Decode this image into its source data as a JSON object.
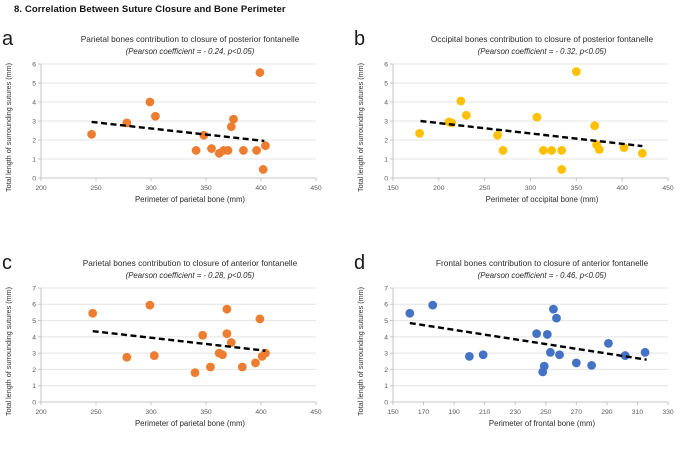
{
  "figure_title": "8. Correlation Between Suture Closure and Bone Perimeter",
  "colors": {
    "orange": "#ED7D31",
    "yellow": "#FFC000",
    "blue": "#4472C4",
    "grid": "#E4E4E4",
    "axis": "#C4C4C4",
    "tick_text": "#595959",
    "trend": "#000000"
  },
  "chart_data": [
    {
      "panel_label": "a",
      "type": "scatter",
      "title": "Parietal bones contribution to closure of posterior fontanelle",
      "subtitle": "(Pearson coefficient = - 0.24, p<0.05)",
      "xlabel": "Perimeter of parietal bone (mm)",
      "ylabel": "Total length of surrounding sutures (mm)",
      "xlim": [
        200,
        450
      ],
      "xtick_step": 50,
      "ylim": [
        0,
        6
      ],
      "ytick_step": 1,
      "grid": "horizontal",
      "legend": null,
      "point_color": "#ED7D31",
      "points": [
        [
          246,
          2.3
        ],
        [
          278,
          2.9
        ],
        [
          299,
          4.0
        ],
        [
          304,
          3.25
        ],
        [
          341,
          1.45
        ],
        [
          348,
          2.25
        ],
        [
          355,
          1.55
        ],
        [
          362,
          1.3
        ],
        [
          366,
          1.45
        ],
        [
          370,
          1.45
        ],
        [
          373,
          2.7
        ],
        [
          375,
          3.1
        ],
        [
          384,
          1.45
        ],
        [
          396,
          1.45
        ],
        [
          399,
          5.55
        ],
        [
          402,
          0.45
        ],
        [
          404,
          1.7
        ]
      ],
      "trend": [
        [
          246,
          2.95
        ],
        [
          403,
          1.95
        ]
      ]
    },
    {
      "panel_label": "b",
      "type": "scatter",
      "title": "Occipital bones contribution to closure of posterior fontanelle",
      "subtitle": "(Pearson coefficient = - 0.32, p<0.05)",
      "xlabel": "Perimeter of occipital bone (mm)",
      "ylabel": "Total length of surrounding sutures (mm)",
      "xlim": [
        150,
        450
      ],
      "xtick_step": 50,
      "ylim": [
        0,
        6
      ],
      "ytick_step": 1,
      "grid": "horizontal",
      "legend": null,
      "point_color": "#FFC000",
      "points": [
        [
          179,
          2.35
        ],
        [
          211,
          2.95
        ],
        [
          214,
          2.9
        ],
        [
          224,
          4.05
        ],
        [
          230,
          3.3
        ],
        [
          264,
          2.25
        ],
        [
          270,
          1.45
        ],
        [
          307,
          3.2
        ],
        [
          314,
          1.45
        ],
        [
          323,
          1.45
        ],
        [
          334,
          1.45
        ],
        [
          334,
          0.45
        ],
        [
          350,
          5.6
        ],
        [
          370,
          2.75
        ],
        [
          372,
          1.75
        ],
        [
          375,
          1.5
        ],
        [
          402,
          1.6
        ],
        [
          422,
          1.3
        ]
      ],
      "trend": [
        [
          180,
          3.0
        ],
        [
          422,
          1.68
        ]
      ]
    },
    {
      "panel_label": "c",
      "type": "scatter",
      "title": "Parietal bones contribution to closure of anterior fontanelle",
      "subtitle": "(Pearson coefficient = - 0.28, p<0.05)",
      "xlabel": "Perimeter of parietal bone (mm)",
      "ylabel": "Total length of surrounding sutures (mm)",
      "xlim": [
        200,
        450
      ],
      "xtick_step": 50,
      "ylim": [
        0,
        7
      ],
      "ytick_step": 1,
      "grid": "horizontal",
      "legend": null,
      "point_color": "#ED7D31",
      "points": [
        [
          247,
          5.45
        ],
        [
          278,
          2.75
        ],
        [
          299,
          5.95
        ],
        [
          303,
          2.85
        ],
        [
          340,
          1.8
        ],
        [
          347,
          4.1
        ],
        [
          354,
          2.15
        ],
        [
          362,
          3.0
        ],
        [
          365,
          2.9
        ],
        [
          369,
          4.2
        ],
        [
          369,
          5.7
        ],
        [
          373,
          3.65
        ],
        [
          383,
          2.15
        ],
        [
          395,
          2.4
        ],
        [
          399,
          5.1
        ],
        [
          401,
          2.8
        ],
        [
          404,
          3.0
        ]
      ],
      "trend": [
        [
          247,
          4.35
        ],
        [
          404,
          3.15
        ]
      ]
    },
    {
      "panel_label": "d",
      "type": "scatter",
      "title": "Frontal bones contribution to closure of anterior fontanelle",
      "subtitle": "(Pearson coefficient = - 0.46, p<0.05)",
      "xlabel": "Perimeter of frontal bone (mm)",
      "ylabel": "Total length of surrounding sutures (mm)",
      "xlim": [
        150,
        330
      ],
      "xtick_step": 20,
      "ylim": [
        0,
        7
      ],
      "ytick_step": 1,
      "grid": "horizontal",
      "legend": null,
      "point_color": "#4472C4",
      "points": [
        [
          161,
          5.45
        ],
        [
          176,
          5.95
        ],
        [
          200,
          2.8
        ],
        [
          209,
          2.9
        ],
        [
          244,
          4.2
        ],
        [
          248,
          1.85
        ],
        [
          249,
          2.2
        ],
        [
          251,
          4.15
        ],
        [
          253,
          3.05
        ],
        [
          255,
          5.7
        ],
        [
          257,
          5.15
        ],
        [
          259,
          2.9
        ],
        [
          270,
          2.4
        ],
        [
          280,
          2.25
        ],
        [
          291,
          3.6
        ],
        [
          302,
          2.85
        ],
        [
          315,
          3.05
        ]
      ],
      "trend": [
        [
          161,
          4.85
        ],
        [
          316,
          2.6
        ]
      ]
    }
  ]
}
